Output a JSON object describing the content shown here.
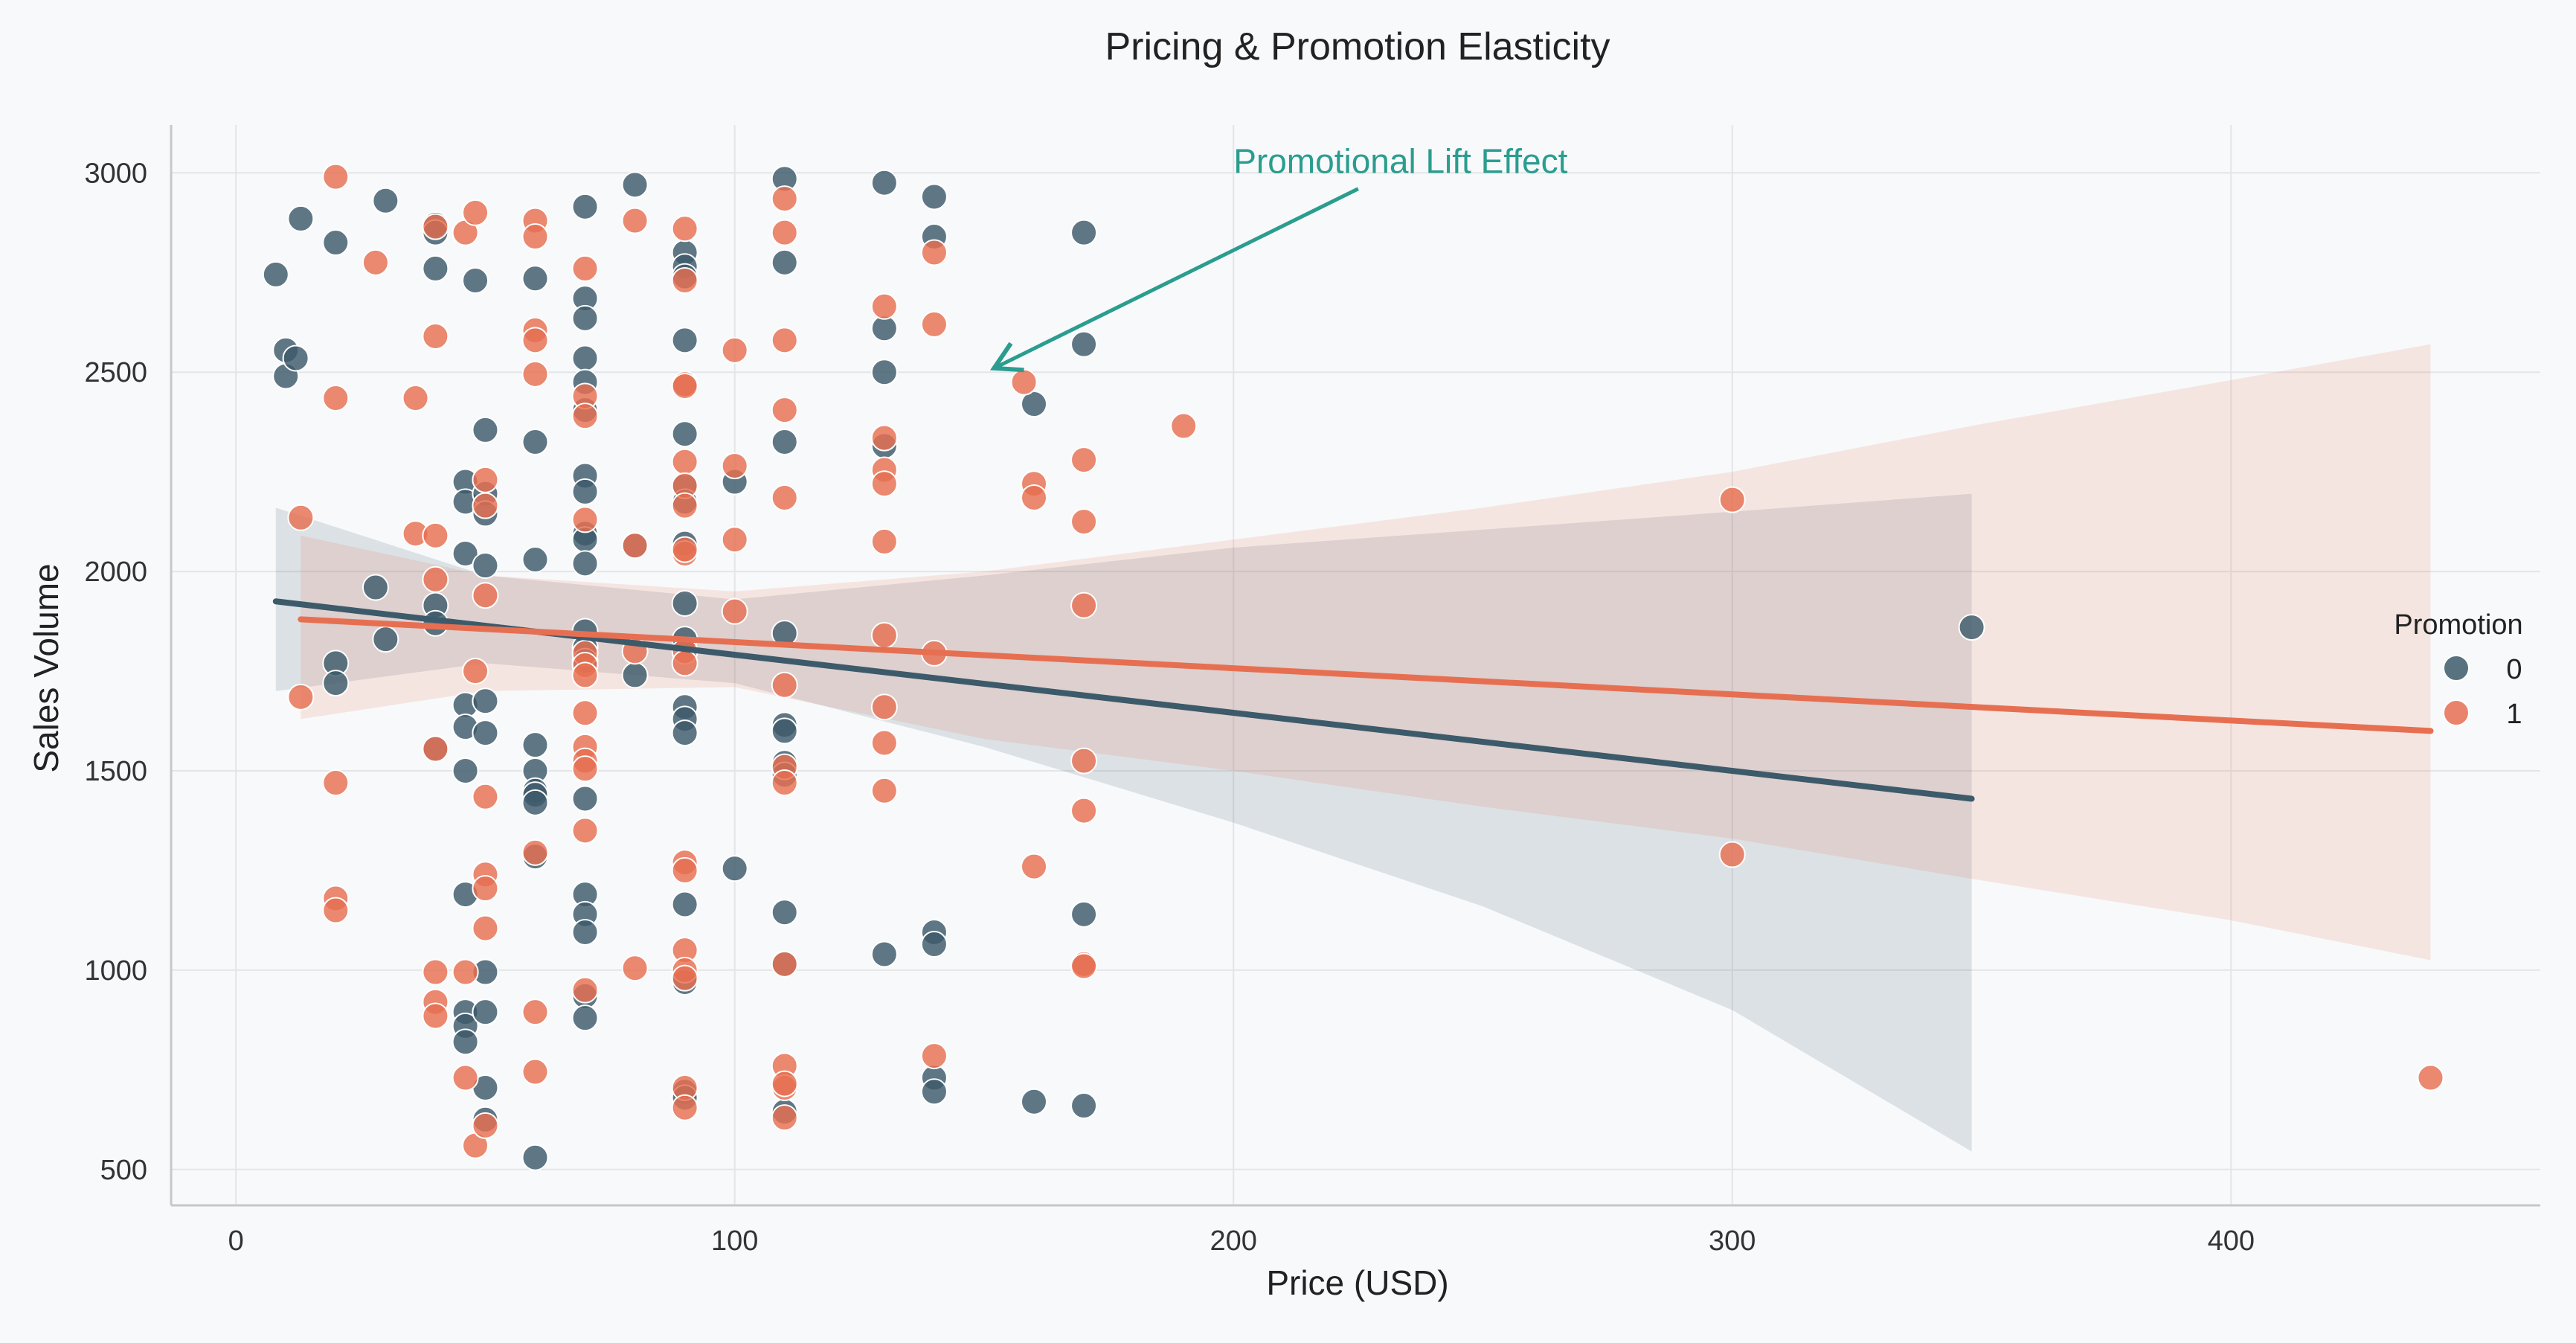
{
  "chart_data": {
    "type": "scatter",
    "title": "Pricing & Promotion Elasticity",
    "xlabel": "Price (USD)",
    "ylabel": "Sales Volume",
    "xlim": [
      -13,
      462
    ],
    "ylim": [
      410,
      3120
    ],
    "xticks": [
      0,
      100,
      200,
      300,
      400
    ],
    "yticks": [
      500,
      1000,
      1500,
      2000,
      2500,
      3000
    ],
    "grid": true,
    "legend": {
      "title": "Promotion",
      "placement": "right",
      "entries": [
        "0",
        "1"
      ]
    },
    "annotation": {
      "text": "Promotional Lift Effect",
      "text_at": [
        200,
        3000
      ],
      "arrow_from": [
        225,
        2960
      ],
      "arrow_to": [
        152,
        2510
      ],
      "color": "#2a9d8f"
    },
    "series": [
      {
        "name": "0",
        "color": "#3d5a6a",
        "points": [
          [
            8,
            2745
          ],
          [
            10,
            2555
          ],
          [
            10,
            2490
          ],
          [
            12,
            2535
          ],
          [
            13,
            2885
          ],
          [
            20,
            2825
          ],
          [
            20,
            1770
          ],
          [
            20,
            1720
          ],
          [
            28,
            1960
          ],
          [
            30,
            2930
          ],
          [
            30,
            1830
          ],
          [
            40,
            2870
          ],
          [
            40,
            2850
          ],
          [
            40,
            2760
          ],
          [
            40,
            1915
          ],
          [
            40,
            1870
          ],
          [
            40,
            1555
          ],
          [
            46,
            2225
          ],
          [
            46,
            2175
          ],
          [
            46,
            2045
          ],
          [
            46,
            1665
          ],
          [
            46,
            1610
          ],
          [
            46,
            1500
          ],
          [
            46,
            1190
          ],
          [
            46,
            895
          ],
          [
            46,
            860
          ],
          [
            46,
            820
          ],
          [
            48,
            2730
          ],
          [
            50,
            2355
          ],
          [
            50,
            2195
          ],
          [
            50,
            2145
          ],
          [
            50,
            2015
          ],
          [
            50,
            1675
          ],
          [
            50,
            1595
          ],
          [
            50,
            995
          ],
          [
            50,
            895
          ],
          [
            50,
            705
          ],
          [
            50,
            625
          ],
          [
            60,
            2735
          ],
          [
            60,
            2325
          ],
          [
            60,
            2030
          ],
          [
            60,
            1565
          ],
          [
            60,
            1500
          ],
          [
            60,
            1450
          ],
          [
            60,
            1440
          ],
          [
            60,
            1420
          ],
          [
            60,
            1285
          ],
          [
            60,
            530
          ],
          [
            70,
            2915
          ],
          [
            70,
            2685
          ],
          [
            70,
            2635
          ],
          [
            70,
            2535
          ],
          [
            70,
            2475
          ],
          [
            70,
            2405
          ],
          [
            70,
            2240
          ],
          [
            70,
            2200
          ],
          [
            70,
            2095
          ],
          [
            70,
            2080
          ],
          [
            70,
            2020
          ],
          [
            70,
            1850
          ],
          [
            70,
            1810
          ],
          [
            70,
            1775
          ],
          [
            70,
            1430
          ],
          [
            70,
            1190
          ],
          [
            70,
            1140
          ],
          [
            70,
            1095
          ],
          [
            70,
            935
          ],
          [
            70,
            880
          ],
          [
            80,
            2970
          ],
          [
            80,
            2065
          ],
          [
            80,
            1740
          ],
          [
            90,
            2800
          ],
          [
            90,
            2765
          ],
          [
            90,
            2740
          ],
          [
            90,
            2580
          ],
          [
            90,
            2345
          ],
          [
            90,
            2215
          ],
          [
            90,
            2175
          ],
          [
            90,
            2070
          ],
          [
            90,
            1920
          ],
          [
            90,
            1830
          ],
          [
            90,
            1660
          ],
          [
            90,
            1630
          ],
          [
            90,
            1595
          ],
          [
            90,
            1165
          ],
          [
            90,
            970
          ],
          [
            90,
            695
          ],
          [
            90,
            680
          ],
          [
            100,
            2225
          ],
          [
            100,
            1255
          ],
          [
            110,
            2985
          ],
          [
            110,
            2775
          ],
          [
            110,
            2325
          ],
          [
            110,
            1845
          ],
          [
            110,
            1615
          ],
          [
            110,
            1600
          ],
          [
            110,
            1520
          ],
          [
            110,
            1490
          ],
          [
            110,
            1145
          ],
          [
            110,
            1015
          ],
          [
            110,
            645
          ],
          [
            130,
            2975
          ],
          [
            130,
            2610
          ],
          [
            130,
            2500
          ],
          [
            130,
            2315
          ],
          [
            130,
            1040
          ],
          [
            140,
            2940
          ],
          [
            140,
            2840
          ],
          [
            140,
            1095
          ],
          [
            140,
            1065
          ],
          [
            140,
            730
          ],
          [
            140,
            695
          ],
          [
            160,
            2420
          ],
          [
            160,
            670
          ],
          [
            170,
            2850
          ],
          [
            170,
            2570
          ],
          [
            170,
            1140
          ],
          [
            170,
            660
          ],
          [
            348,
            1860
          ]
        ]
      },
      {
        "name": "1",
        "color": "#e76f51",
        "points": [
          [
            13,
            2135
          ],
          [
            13,
            1685
          ],
          [
            20,
            2990
          ],
          [
            20,
            2435
          ],
          [
            20,
            1470
          ],
          [
            20,
            1180
          ],
          [
            20,
            1150
          ],
          [
            28,
            2775
          ],
          [
            36,
            2435
          ],
          [
            36,
            2095
          ],
          [
            40,
            2590
          ],
          [
            40,
            2865
          ],
          [
            40,
            2090
          ],
          [
            40,
            1980
          ],
          [
            40,
            1555
          ],
          [
            40,
            995
          ],
          [
            40,
            920
          ],
          [
            40,
            885
          ],
          [
            46,
            2850
          ],
          [
            46,
            995
          ],
          [
            46,
            730
          ],
          [
            48,
            2900
          ],
          [
            48,
            1750
          ],
          [
            48,
            560
          ],
          [
            50,
            2230
          ],
          [
            50,
            2165
          ],
          [
            50,
            1940
          ],
          [
            50,
            1435
          ],
          [
            50,
            1240
          ],
          [
            50,
            1205
          ],
          [
            50,
            1105
          ],
          [
            50,
            610
          ],
          [
            60,
            2880
          ],
          [
            60,
            2840
          ],
          [
            60,
            2605
          ],
          [
            60,
            2580
          ],
          [
            60,
            2495
          ],
          [
            60,
            1295
          ],
          [
            60,
            895
          ],
          [
            60,
            745
          ],
          [
            70,
            2760
          ],
          [
            70,
            2440
          ],
          [
            70,
            2390
          ],
          [
            70,
            2130
          ],
          [
            70,
            1795
          ],
          [
            70,
            1765
          ],
          [
            70,
            1740
          ],
          [
            70,
            1645
          ],
          [
            70,
            1560
          ],
          [
            70,
            1525
          ],
          [
            70,
            1505
          ],
          [
            70,
            1350
          ],
          [
            70,
            950
          ],
          [
            80,
            2880
          ],
          [
            80,
            2065
          ],
          [
            80,
            1800
          ],
          [
            80,
            1005
          ],
          [
            90,
            2860
          ],
          [
            90,
            2730
          ],
          [
            90,
            2470
          ],
          [
            90,
            2465
          ],
          [
            90,
            2275
          ],
          [
            90,
            2215
          ],
          [
            90,
            2165
          ],
          [
            90,
            2045
          ],
          [
            90,
            2055
          ],
          [
            90,
            1800
          ],
          [
            90,
            1770
          ],
          [
            90,
            1270
          ],
          [
            90,
            1250
          ],
          [
            90,
            1050
          ],
          [
            90,
            1000
          ],
          [
            90,
            980
          ],
          [
            90,
            705
          ],
          [
            90,
            655
          ],
          [
            100,
            2555
          ],
          [
            100,
            2265
          ],
          [
            100,
            2080
          ],
          [
            100,
            1900
          ],
          [
            110,
            2935
          ],
          [
            110,
            2850
          ],
          [
            110,
            2580
          ],
          [
            110,
            2405
          ],
          [
            110,
            2185
          ],
          [
            110,
            1715
          ],
          [
            110,
            1510
          ],
          [
            110,
            1470
          ],
          [
            110,
            1015
          ],
          [
            110,
            760
          ],
          [
            110,
            705
          ],
          [
            110,
            715
          ],
          [
            110,
            630
          ],
          [
            130,
            2665
          ],
          [
            130,
            2335
          ],
          [
            130,
            2255
          ],
          [
            130,
            2220
          ],
          [
            130,
            2075
          ],
          [
            130,
            1840
          ],
          [
            130,
            1660
          ],
          [
            130,
            1570
          ],
          [
            130,
            1450
          ],
          [
            140,
            2800
          ],
          [
            140,
            2620
          ],
          [
            140,
            1795
          ],
          [
            140,
            785
          ],
          [
            158,
            2475
          ],
          [
            160,
            2220
          ],
          [
            160,
            2185
          ],
          [
            160,
            1260
          ],
          [
            170,
            2280
          ],
          [
            170,
            2125
          ],
          [
            170,
            1915
          ],
          [
            170,
            1525
          ],
          [
            170,
            1400
          ],
          [
            170,
            1015
          ],
          [
            170,
            1010
          ],
          [
            190,
            2365
          ],
          [
            300,
            2180
          ],
          [
            300,
            1290
          ],
          [
            440,
            730
          ]
        ]
      }
    ],
    "regression": [
      {
        "name": "0",
        "color": "#3d5a6a",
        "x": [
          8,
          348
        ],
        "y": [
          1925,
          1430
        ],
        "ci": {
          "x": [
            8,
            50,
            100,
            150,
            200,
            250,
            300,
            348
          ],
          "lower": [
            1700,
            1770,
            1720,
            1560,
            1370,
            1160,
            900,
            545
          ],
          "upper": [
            2160,
            1990,
            1930,
            1990,
            2060,
            2105,
            2150,
            2195
          ]
        }
      },
      {
        "name": "1",
        "color": "#e76f51",
        "x": [
          13,
          440
        ],
        "y": [
          1880,
          1600
        ],
        "ci": {
          "x": [
            13,
            50,
            100,
            150,
            200,
            250,
            300,
            350,
            400,
            440
          ],
          "lower": [
            1630,
            1700,
            1710,
            1580,
            1500,
            1410,
            1330,
            1225,
            1125,
            1025
          ],
          "upper": [
            2090,
            1990,
            1950,
            2000,
            2080,
            2160,
            2250,
            2370,
            2480,
            2570
          ]
        }
      }
    ]
  }
}
